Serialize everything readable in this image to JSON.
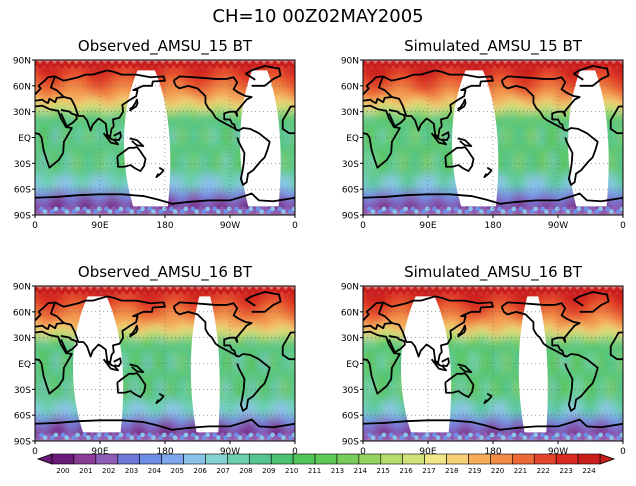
{
  "figure": {
    "title": "CH=10    00Z02MAY2005"
  },
  "chart_data": [
    {
      "type": "heatmap",
      "title": "Observed_AMSU_15 BT",
      "x_ticks": [
        "0",
        "90E",
        "180",
        "90W",
        "0"
      ],
      "y_ticks": [
        "90N",
        "60N",
        "30N",
        "EQ",
        "30S",
        "60S",
        "90S"
      ],
      "xlim": [
        0,
        360
      ],
      "ylim": [
        -90,
        90
      ],
      "swath_gaps_lon": [
        [
          130,
          178
        ],
        [
          290,
          332
        ]
      ],
      "grid": "dotted"
    },
    {
      "type": "heatmap",
      "title": "Simulated_AMSU_15 BT",
      "x_ticks": [
        "0",
        "90E",
        "180",
        "90W",
        "0"
      ],
      "y_ticks": [
        "90N",
        "60N",
        "30N",
        "EQ",
        "30S",
        "60S",
        "90S"
      ],
      "xlim": [
        0,
        360
      ],
      "ylim": [
        -90,
        90
      ],
      "swath_gaps_lon": [
        [
          130,
          178
        ],
        [
          290,
          332
        ]
      ],
      "grid": "dotted"
    },
    {
      "type": "heatmap",
      "title": "Observed_AMSU_16 BT",
      "x_ticks": [
        "0",
        "90E",
        "180",
        "90W",
        "0"
      ],
      "y_ticks": [
        "90N",
        "60N",
        "30N",
        "EQ",
        "30S",
        "60S",
        "90S"
      ],
      "xlim": [
        0,
        360
      ],
      "ylim": [
        -90,
        90
      ],
      "swath_gaps_lon": [
        [
          60,
          112
        ],
        [
          220,
          250
        ]
      ],
      "grid": "dotted"
    },
    {
      "type": "heatmap",
      "title": "Simulated_AMSU_16 BT",
      "x_ticks": [
        "0",
        "90E",
        "180",
        "90W",
        "0"
      ],
      "y_ticks": [
        "90N",
        "60N",
        "30N",
        "EQ",
        "30S",
        "60S",
        "90S"
      ],
      "xlim": [
        0,
        360
      ],
      "ylim": [
        -90,
        90
      ],
      "swath_gaps_lon": [
        [
          60,
          112
        ],
        [
          220,
          250
        ]
      ],
      "grid": "dotted"
    }
  ],
  "colorbar": {
    "labels": [
      "200",
      "201",
      "202",
      "203",
      "204",
      "205",
      "206",
      "207",
      "208",
      "209",
      "210",
      "211",
      "213",
      "214",
      "215",
      "216",
      "217",
      "218",
      "219",
      "220",
      "221",
      "222",
      "223",
      "224"
    ],
    "colors": [
      "#6a1b78",
      "#8a3c96",
      "#8d5db8",
      "#6b78d8",
      "#6f90e8",
      "#7ea8ee",
      "#8cc3ea",
      "#86d3d2",
      "#6bcfb0",
      "#55c590",
      "#4cc26f",
      "#52c458",
      "#60c858",
      "#78cc5c",
      "#95d463",
      "#b4dc6e",
      "#d2e37a",
      "#f2e68a",
      "#f8d078",
      "#f5ad5a",
      "#f08c46",
      "#ec6a38",
      "#e4462c",
      "#d92a22",
      "#c81e1c"
    ]
  }
}
